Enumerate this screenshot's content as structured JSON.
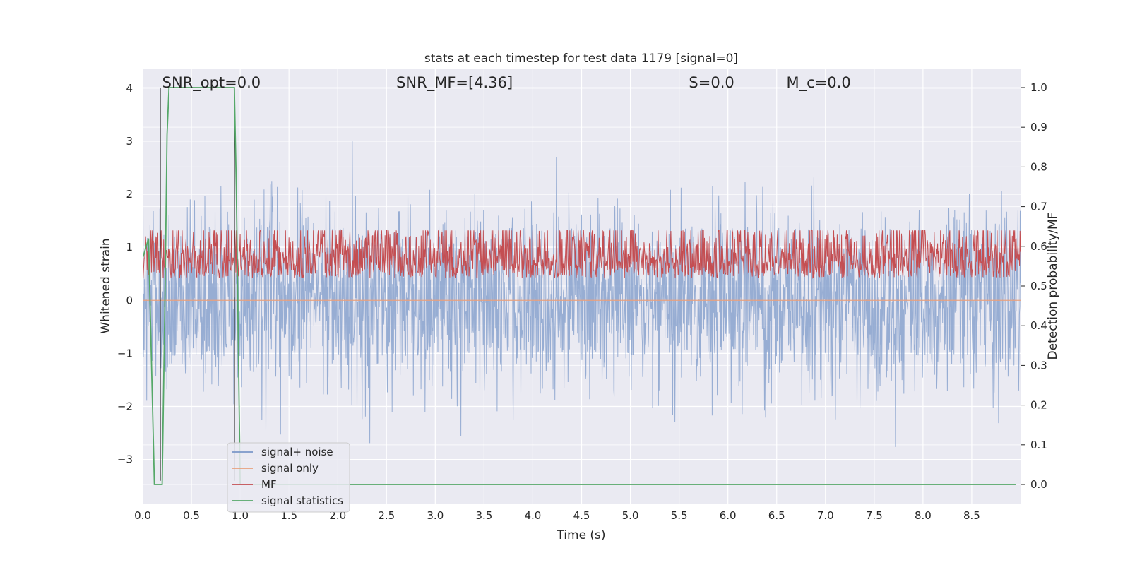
{
  "chart_data": {
    "type": "line",
    "title": "stats at each timestep for test data 1179 [signal=0]",
    "xlabel": "Time (s)",
    "ylabel_left": "Whitened strain",
    "ylabel_right": "Detection probability/MF",
    "xlim": [
      0.0,
      9.0
    ],
    "ylim_left": [
      -3.83,
      4.37
    ],
    "ylim_right": [
      -0.048,
      1.048
    ],
    "x_ticks": [
      "0.0",
      "0.5",
      "1.0",
      "1.5",
      "2.0",
      "2.5",
      "3.0",
      "3.5",
      "4.0",
      "4.5",
      "5.0",
      "5.5",
      "6.0",
      "6.5",
      "7.0",
      "7.5",
      "8.0",
      "8.5"
    ],
    "x_tick_values": [
      0.0,
      0.5,
      1.0,
      1.5,
      2.0,
      2.5,
      3.0,
      3.5,
      4.0,
      4.5,
      5.0,
      5.5,
      6.0,
      6.5,
      7.0,
      7.5,
      8.0,
      8.5
    ],
    "y_ticks_left": [
      "4",
      "3",
      "2",
      "1",
      "0",
      "−1",
      "−2",
      "−3"
    ],
    "y_tick_values_left": [
      4,
      3,
      2,
      1,
      0,
      -1,
      -2,
      -3
    ],
    "y_ticks_right": [
      "1.0",
      "0.9",
      "0.8",
      "0.7",
      "0.6",
      "0.5",
      "0.4",
      "0.3",
      "0.2",
      "0.1",
      "0.0"
    ],
    "y_tick_values_right": [
      1.0,
      0.9,
      0.8,
      0.7,
      0.6,
      0.5,
      0.4,
      0.3,
      0.2,
      0.1,
      0.0
    ],
    "grid": true,
    "legend_position": "lower-left",
    "annotations": [
      {
        "name": "snr-opt",
        "text": "SNR_opt=0.0",
        "x": 0.2
      },
      {
        "name": "snr-mf",
        "text": "SNR_MF=[4.36]",
        "x": 2.6
      },
      {
        "name": "s-value",
        "text": "S=0.0",
        "x": 5.6
      },
      {
        "name": "mc-value",
        "text": "M_c=0.0",
        "x": 6.6
      }
    ],
    "series": [
      {
        "name": "signal+ noise",
        "color": "#7b98c8",
        "axis": "left",
        "kind": "noise",
        "sigma": 0.85,
        "mean": 0.0
      },
      {
        "name": "signal only",
        "color": "#e7a07e",
        "axis": "left",
        "kind": "flat",
        "value": 0.0
      },
      {
        "name": "MF",
        "color": "#c44e52",
        "axis": "right",
        "kind": "noise",
        "sigma": 0.07,
        "mean": 0.52
      },
      {
        "name": "signal statistics",
        "color": "#55a868",
        "axis": "right",
        "x": [
          0.0,
          0.06,
          0.12,
          0.17,
          0.2,
          0.23,
          0.25,
          0.27,
          0.94,
          0.96,
          1.0,
          1.05,
          8.95
        ],
        "y": [
          0.57,
          0.62,
          0.0,
          0.0,
          0.0,
          0.5,
          0.88,
          1.0,
          1.0,
          0.75,
          0.0,
          0.0,
          0.0
        ]
      },
      {
        "name": "markers",
        "color": "#333333",
        "axis": "left",
        "kind": "vlines",
        "x": [
          0.18,
          0.94
        ]
      }
    ],
    "legend": [
      "signal+ noise",
      "signal only",
      "MF",
      "signal statistics"
    ]
  }
}
